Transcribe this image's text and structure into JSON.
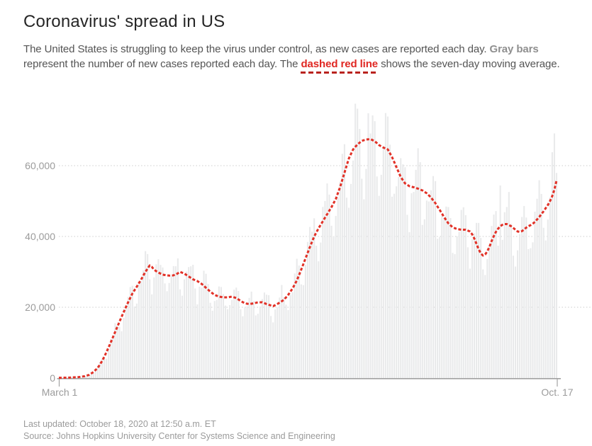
{
  "header": {
    "title": "Coronavirus' spread in US",
    "description": {
      "part1": "The United States is struggling to keep the virus under control, as new cases are reported each day. ",
      "gray_label": "Gray bars",
      "part2": " represent the number of new cases reported each day. The ",
      "red_label": "dashed red line",
      "part3": " shows the seven-day moving average."
    }
  },
  "footer": {
    "last_updated": "Last updated: October 18, 2020 at 12:50 a.m. ET",
    "source": "Source: Johns Hopkins University Center for Systems Science and Engineering"
  },
  "chart_data": {
    "type": "bar+line",
    "title": "Coronavirus' spread in US",
    "legend_position": "none",
    "x_axis": {
      "start_label": "March 1",
      "end_label": "Oct. 17",
      "days": 231
    },
    "y_axis": {
      "ticks": [
        {
          "value": 0,
          "label": "0"
        },
        {
          "value": 20000,
          "label": "20,000"
        },
        {
          "value": 40000,
          "label": "40,000"
        },
        {
          "value": 60000,
          "label": "60,000"
        }
      ],
      "max": 78500,
      "gridlines": "dotted"
    },
    "series": [
      {
        "name": "New cases reported each day",
        "type": "bar",
        "color": "#e9eaeb"
      },
      {
        "name": "Seven-day moving average",
        "type": "dashed-line",
        "color": "#e23127"
      }
    ],
    "avg_points": [
      [
        0,
        70
      ],
      [
        5,
        130
      ],
      [
        9,
        260
      ],
      [
        12,
        520
      ],
      [
        14,
        900
      ],
      [
        16,
        1700
      ],
      [
        18,
        2900
      ],
      [
        20,
        4800
      ],
      [
        22,
        7300
      ],
      [
        24,
        10100
      ],
      [
        26,
        13000
      ],
      [
        28,
        15900
      ],
      [
        30,
        18700
      ],
      [
        32,
        21400
      ],
      [
        34,
        23900
      ],
      [
        36,
        25800
      ],
      [
        38,
        27800
      ],
      [
        40,
        30000
      ],
      [
        42,
        31800
      ],
      [
        43,
        31400
      ],
      [
        44,
        30600
      ],
      [
        46,
        29800
      ],
      [
        48,
        29200
      ],
      [
        50,
        29000
      ],
      [
        52,
        28900
      ],
      [
        54,
        29200
      ],
      [
        56,
        30000
      ],
      [
        58,
        29500
      ],
      [
        60,
        28700
      ],
      [
        62,
        27900
      ],
      [
        64,
        27400
      ],
      [
        66,
        26600
      ],
      [
        68,
        25500
      ],
      [
        70,
        24400
      ],
      [
        72,
        23500
      ],
      [
        74,
        23000
      ],
      [
        76,
        22800
      ],
      [
        78,
        22800
      ],
      [
        80,
        23000
      ],
      [
        82,
        22600
      ],
      [
        84,
        21800
      ],
      [
        86,
        21100
      ],
      [
        88,
        20900
      ],
      [
        90,
        21100
      ],
      [
        92,
        21400
      ],
      [
        94,
        21400
      ],
      [
        96,
        20900
      ],
      [
        98,
        20500
      ],
      [
        99,
        20300
      ],
      [
        100,
        20600
      ],
      [
        102,
        21300
      ],
      [
        104,
        22100
      ],
      [
        106,
        23500
      ],
      [
        108,
        25300
      ],
      [
        110,
        27600
      ],
      [
        112,
        30600
      ],
      [
        114,
        33800
      ],
      [
        116,
        37000
      ],
      [
        118,
        40000
      ],
      [
        120,
        42300
      ],
      [
        122,
        44300
      ],
      [
        124,
        46300
      ],
      [
        126,
        48300
      ],
      [
        128,
        50600
      ],
      [
        130,
        54000
      ],
      [
        132,
        58000
      ],
      [
        134,
        62000
      ],
      [
        136,
        64600
      ],
      [
        138,
        66000
      ],
      [
        140,
        67000
      ],
      [
        142,
        67400
      ],
      [
        144,
        67500
      ],
      [
        146,
        66900
      ],
      [
        148,
        65800
      ],
      [
        150,
        65100
      ],
      [
        152,
        64600
      ],
      [
        154,
        62400
      ],
      [
        156,
        59600
      ],
      [
        158,
        56800
      ],
      [
        160,
        55000
      ],
      [
        162,
        54200
      ],
      [
        164,
        53900
      ],
      [
        166,
        53500
      ],
      [
        168,
        53000
      ],
      [
        170,
        52200
      ],
      [
        172,
        51000
      ],
      [
        174,
        49400
      ],
      [
        176,
        47500
      ],
      [
        178,
        45500
      ],
      [
        180,
        43700
      ],
      [
        182,
        42600
      ],
      [
        184,
        42100
      ],
      [
        186,
        41900
      ],
      [
        188,
        41900
      ],
      [
        190,
        41400
      ],
      [
        191,
        40600
      ],
      [
        192,
        39400
      ],
      [
        193,
        37900
      ],
      [
        194,
        36400
      ],
      [
        195,
        35200
      ],
      [
        196,
        34600
      ],
      [
        197,
        34900
      ],
      [
        198,
        35800
      ],
      [
        199,
        37100
      ],
      [
        200,
        38700
      ],
      [
        201,
        40100
      ],
      [
        202,
        41300
      ],
      [
        203,
        42200
      ],
      [
        204,
        42900
      ],
      [
        205,
        43300
      ],
      [
        206,
        43500
      ],
      [
        207,
        43500
      ],
      [
        208,
        43200
      ],
      [
        209,
        42900
      ],
      [
        210,
        42400
      ],
      [
        211,
        41900
      ],
      [
        212,
        41400
      ],
      [
        213,
        41300
      ],
      [
        214,
        41500
      ],
      [
        215,
        42000
      ],
      [
        216,
        42500
      ],
      [
        217,
        42900
      ],
      [
        218,
        43200
      ],
      [
        219,
        43600
      ],
      [
        220,
        44100
      ],
      [
        221,
        44800
      ],
      [
        222,
        45500
      ],
      [
        223,
        46300
      ],
      [
        224,
        47100
      ],
      [
        225,
        48000
      ],
      [
        226,
        48900
      ],
      [
        227,
        50000
      ],
      [
        228,
        51400
      ],
      [
        229,
        53200
      ],
      [
        230,
        55800
      ]
    ],
    "bar_weekly_factors": [
      0.86,
      0.8,
      0.93,
      1.02,
      1.09,
      1.15,
      1.08
    ],
    "bar_overrides": {
      "137": 77500,
      "143": 74800,
      "204": 54400,
      "228": 63800,
      "229": 69100
    },
    "bar_max": 77600,
    "colors": {
      "bar": "#e9eaeb",
      "line": "#e23127",
      "grid": "#cdcdcd",
      "axis": "#a2a2a2",
      "tick_label": "#9b9b9b"
    }
  }
}
